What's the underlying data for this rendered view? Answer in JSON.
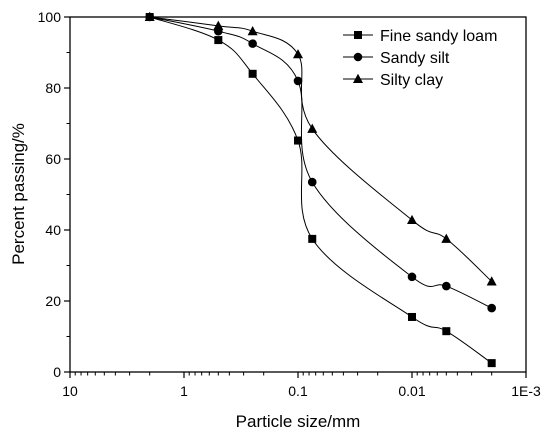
{
  "chart_data": {
    "type": "line",
    "title": "",
    "xlabel": "Particle size/mm",
    "ylabel": "Percent passing/%",
    "xscale": "log",
    "x_reversed": true,
    "xlim": [
      10,
      0.001
    ],
    "ylim": [
      0,
      100
    ],
    "xticks": [
      {
        "value": 10,
        "label": "10"
      },
      {
        "value": 1,
        "label": "1"
      },
      {
        "value": 0.1,
        "label": "0.1"
      },
      {
        "value": 0.01,
        "label": "0.01"
      },
      {
        "value": 0.001,
        "label": "1E-3"
      }
    ],
    "yticks": [
      0,
      20,
      40,
      60,
      80,
      100
    ],
    "grid": false,
    "legend_position": "top-right",
    "series": [
      {
        "name": "Fine sandy loam",
        "marker": "square",
        "x": [
          2,
          0.5,
          0.25,
          0.1,
          0.075,
          0.01,
          0.005,
          0.002
        ],
        "y": [
          100,
          93.5,
          84,
          65.2,
          37.5,
          15.5,
          11.5,
          2.5
        ]
      },
      {
        "name": "Sandy silt",
        "marker": "circle",
        "x": [
          2,
          0.5,
          0.25,
          0.1,
          0.075,
          0.01,
          0.005,
          0.002
        ],
        "y": [
          100,
          96,
          92.5,
          82,
          53.5,
          26.8,
          24.2,
          18
        ]
      },
      {
        "name": "Silty clay",
        "marker": "triangle",
        "x": [
          2,
          0.5,
          0.25,
          0.1,
          0.075,
          0.01,
          0.005,
          0.002
        ],
        "y": [
          100,
          97.5,
          96,
          89.5,
          68.5,
          42.8,
          37.5,
          25.5
        ]
      }
    ]
  }
}
